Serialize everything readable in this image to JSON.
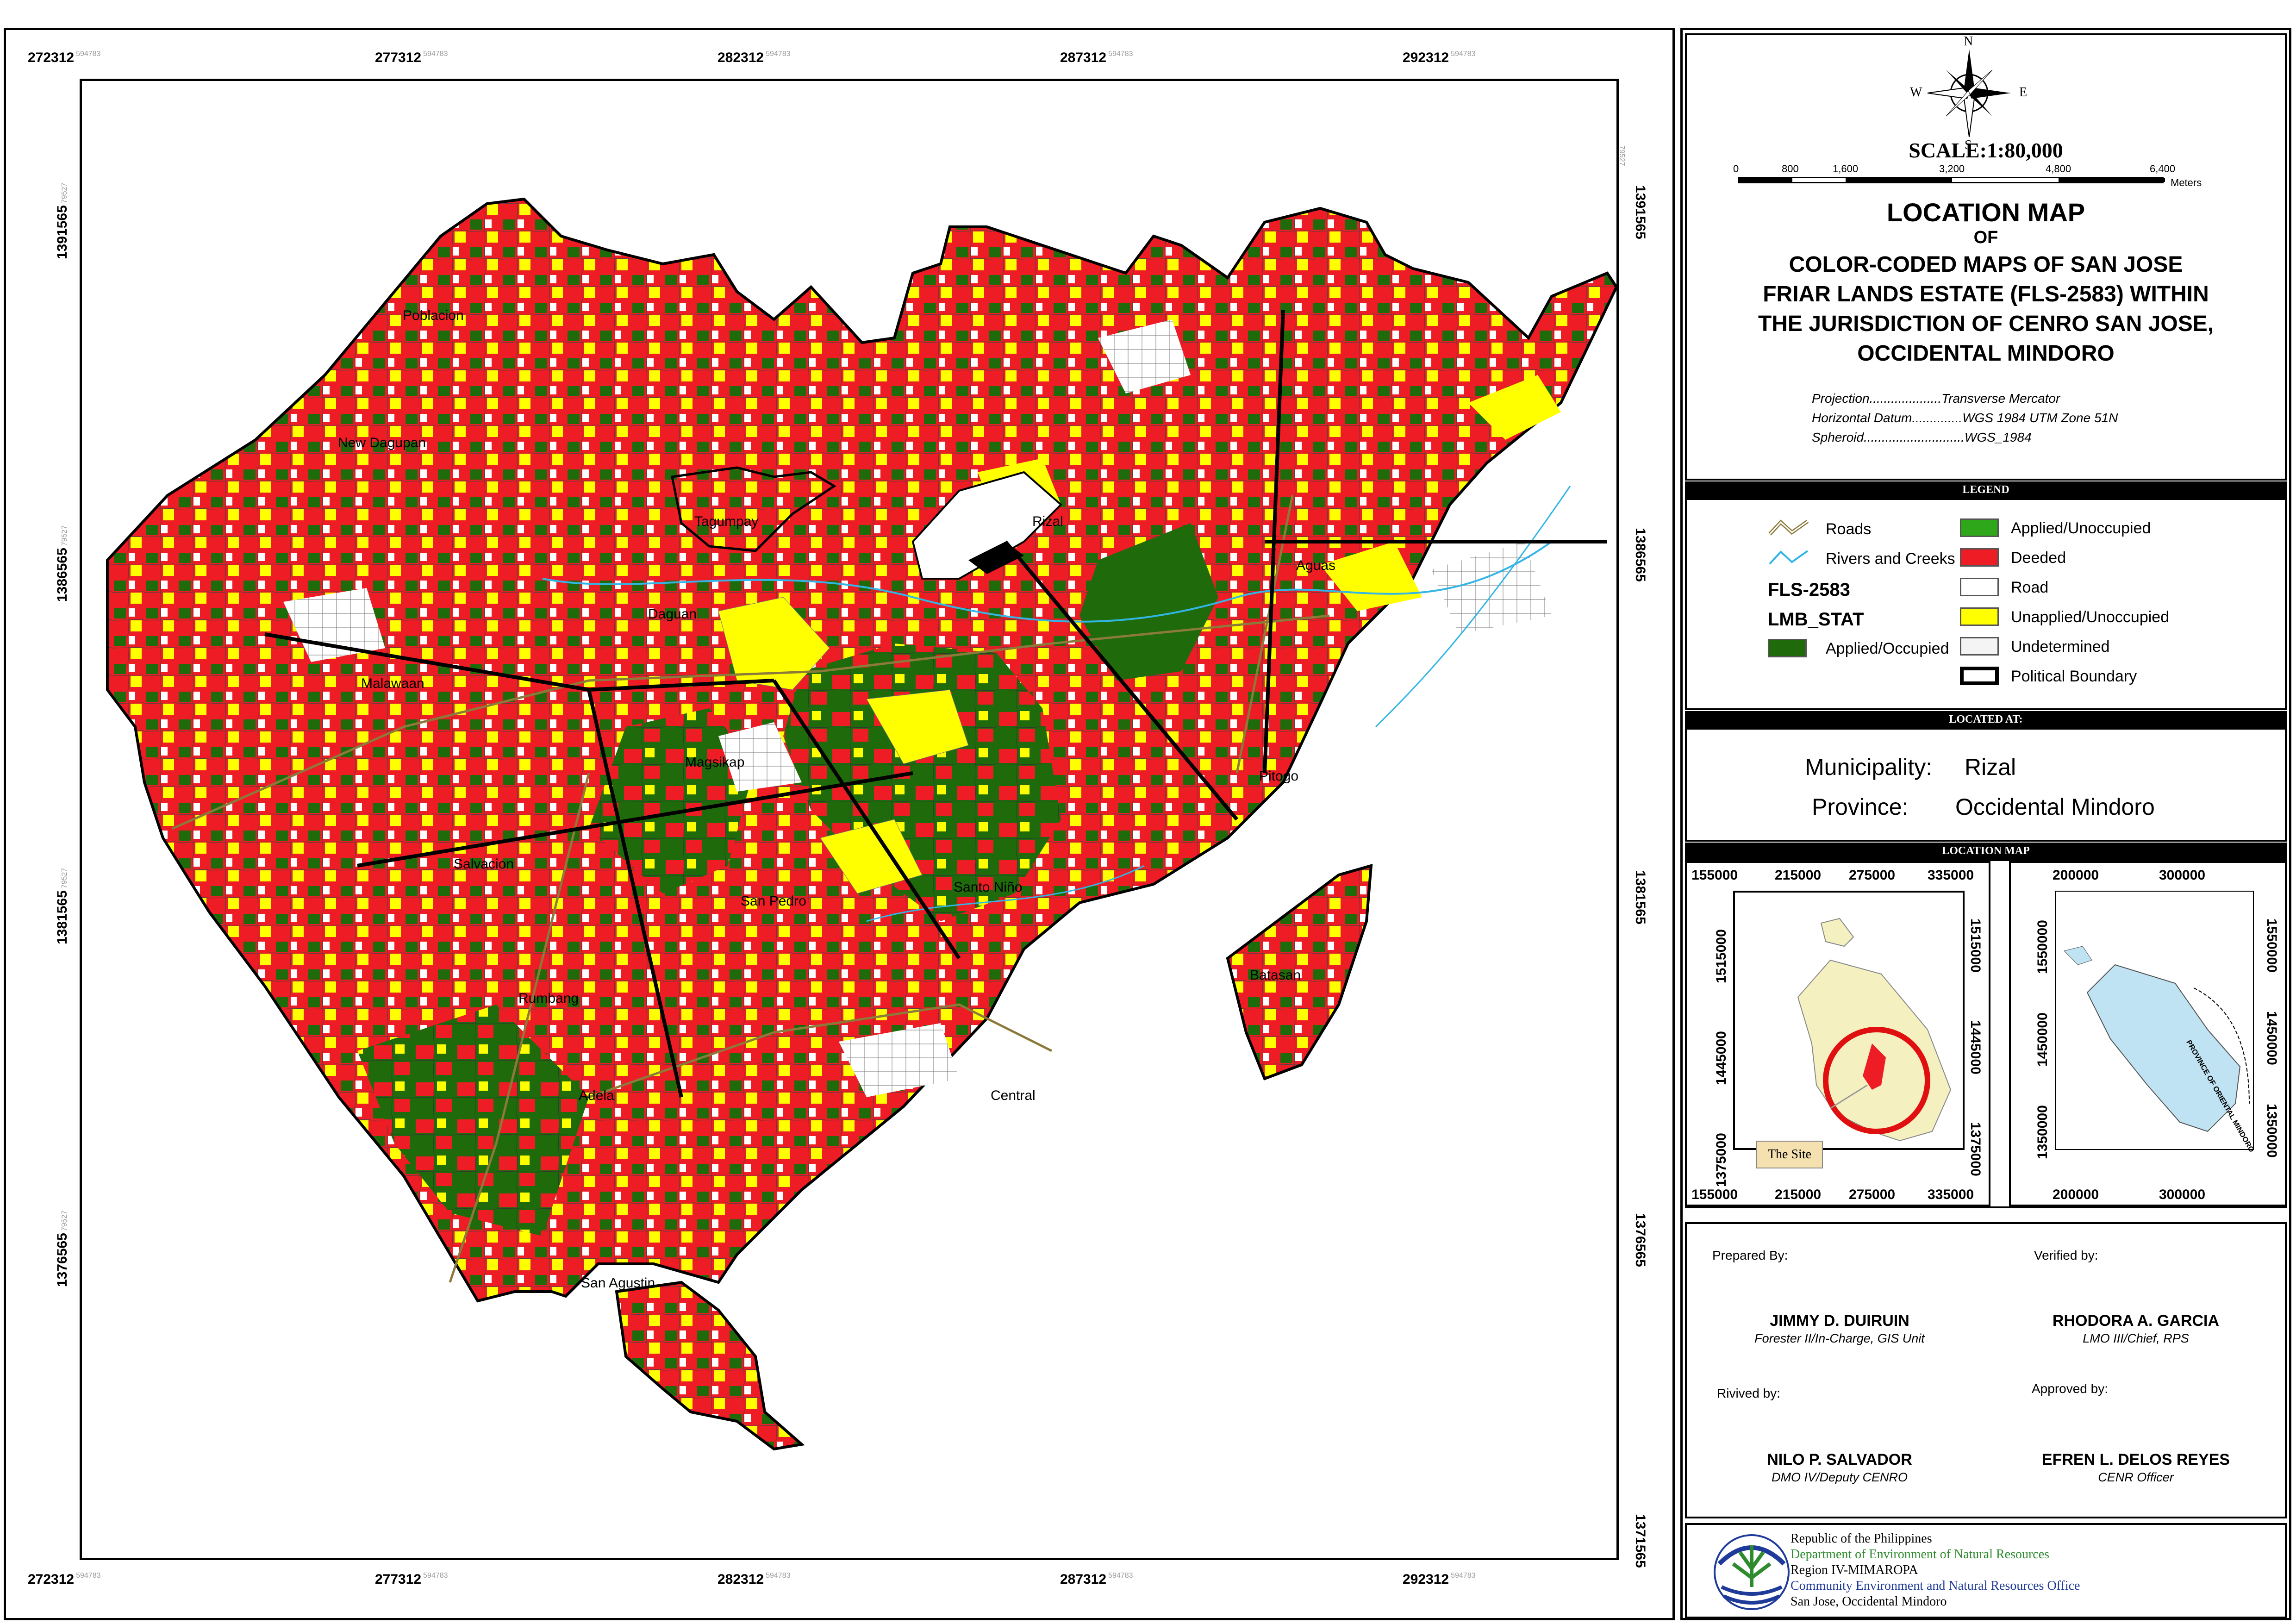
{
  "map_frame": {
    "top_ticks": [
      "272312",
      "277312",
      "282312",
      "287312",
      "292312"
    ],
    "bottom_ticks": [
      "272312",
      "277312",
      "282312",
      "287312",
      "292312"
    ],
    "tick_suffix": "594783",
    "left_ticks": [
      "1391565",
      "1386565",
      "1381565",
      "1376565"
    ],
    "right_ticks": [
      "1391565",
      "1386565",
      "1381565",
      "1376565",
      "1371565"
    ],
    "side_suffix": "79527"
  },
  "place_labels": [
    "Poblacion",
    "New Dagupan",
    "Tagumpay",
    "Rizal",
    "Aguas",
    "Malawaan",
    "Magsikap",
    "Santo Niño",
    "San Pedro",
    "Salvacion",
    "Rumbang",
    "Adela",
    "San Agustin",
    "Central",
    "Batasan",
    "Pitogo",
    "Daguan"
  ],
  "compass": {
    "n": "N",
    "s": "S",
    "e": "E",
    "w": "W"
  },
  "scale": {
    "label": "SCALE:1:80,000",
    "ticks": [
      "0",
      "800",
      "1,600",
      "3,200",
      "4,800",
      "6,400"
    ],
    "unit": "Meters"
  },
  "title": {
    "line1": "LOCATION MAP",
    "line2": "OF",
    "line3": "COLOR-CODED MAPS OF SAN JOSE",
    "line4": "FRIAR LANDS ESTATE (FLS-2583) WITHIN",
    "line5": "THE JURISDICTION OF CENRO SAN JOSE,",
    "line6": "OCCIDENTAL MINDORO"
  },
  "projection": [
    {
      "k": "Projection....................",
      "v": "Transverse Mercator"
    },
    {
      "k": "Horizontal Datum..............",
      "v": "WGS 1984 UTM Zone 51N"
    },
    {
      "k": "Spheroid............................",
      "v": "WGS_1984"
    }
  ],
  "legend": {
    "header": "LEGEND",
    "roads": "Roads",
    "rivers": "Rivers and Creeks",
    "fls": "FLS-2583",
    "lmb": "LMB_STAT",
    "items_left": [
      {
        "label": "Applied/Occupied",
        "color": "#1f6b0c"
      }
    ],
    "items_right": [
      {
        "label": "Applied/Unoccupied",
        "color": "#2ea81a"
      },
      {
        "label": "Deeded",
        "color": "#ee1c24"
      },
      {
        "label": "Road",
        "color": "#ffffff"
      },
      {
        "label": "Unapplied/Unoccupied",
        "color": "#ffff00"
      },
      {
        "label": "Undetermined",
        "color": "#f4f4f4"
      },
      {
        "label": "Political Boundary",
        "color": "#ffffff"
      }
    ]
  },
  "located": {
    "header": "LOCATED AT:",
    "municipality_label": "Municipality:",
    "municipality": "Rizal",
    "province_label": "Province:",
    "province": "Occidental Mindoro"
  },
  "location_map": {
    "header": "LOCATION MAP",
    "inset1_x": [
      "155000",
      "215000",
      "275000",
      "335000"
    ],
    "inset1_y": [
      "1515000",
      "1445000",
      "1375000"
    ],
    "site_label": "The Site",
    "inset2_x": [
      "200000",
      "300000"
    ],
    "inset2_y": [
      "1550000",
      "1450000",
      "1350000"
    ],
    "province_text": "PROVINCE OF ORIENTAL MINDORO"
  },
  "signatories": {
    "prepared_by": "Prepared By:",
    "verified_by": "Verified by:",
    "revived_by": "Rivived by:",
    "approved_by": "Approved by:",
    "p1_name": "JIMMY D. DUIRUIN",
    "p1_role": "Forester II/In-Charge, GIS Unit",
    "p2_name": "RHODORA A.  GARCIA",
    "p2_role": "LMO III/Chief, RPS",
    "p3_name": "NILO P. SALVADOR",
    "p3_role": "DMO IV/Deputy CENRO",
    "p4_name": "EFREN L. DELOS REYES",
    "p4_role": "CENR Officer"
  },
  "footer": {
    "line1": "Republic of the Philippines",
    "line2": "Department of Environment of Natural Resources",
    "line3": "Region IV-MIMAROPA",
    "line4": "Community Environment and Natural Resources Office",
    "line5": "San Jose, Occidental Mindoro",
    "color_green": "#2e8b2e",
    "color_blue": "#1f3b99"
  }
}
